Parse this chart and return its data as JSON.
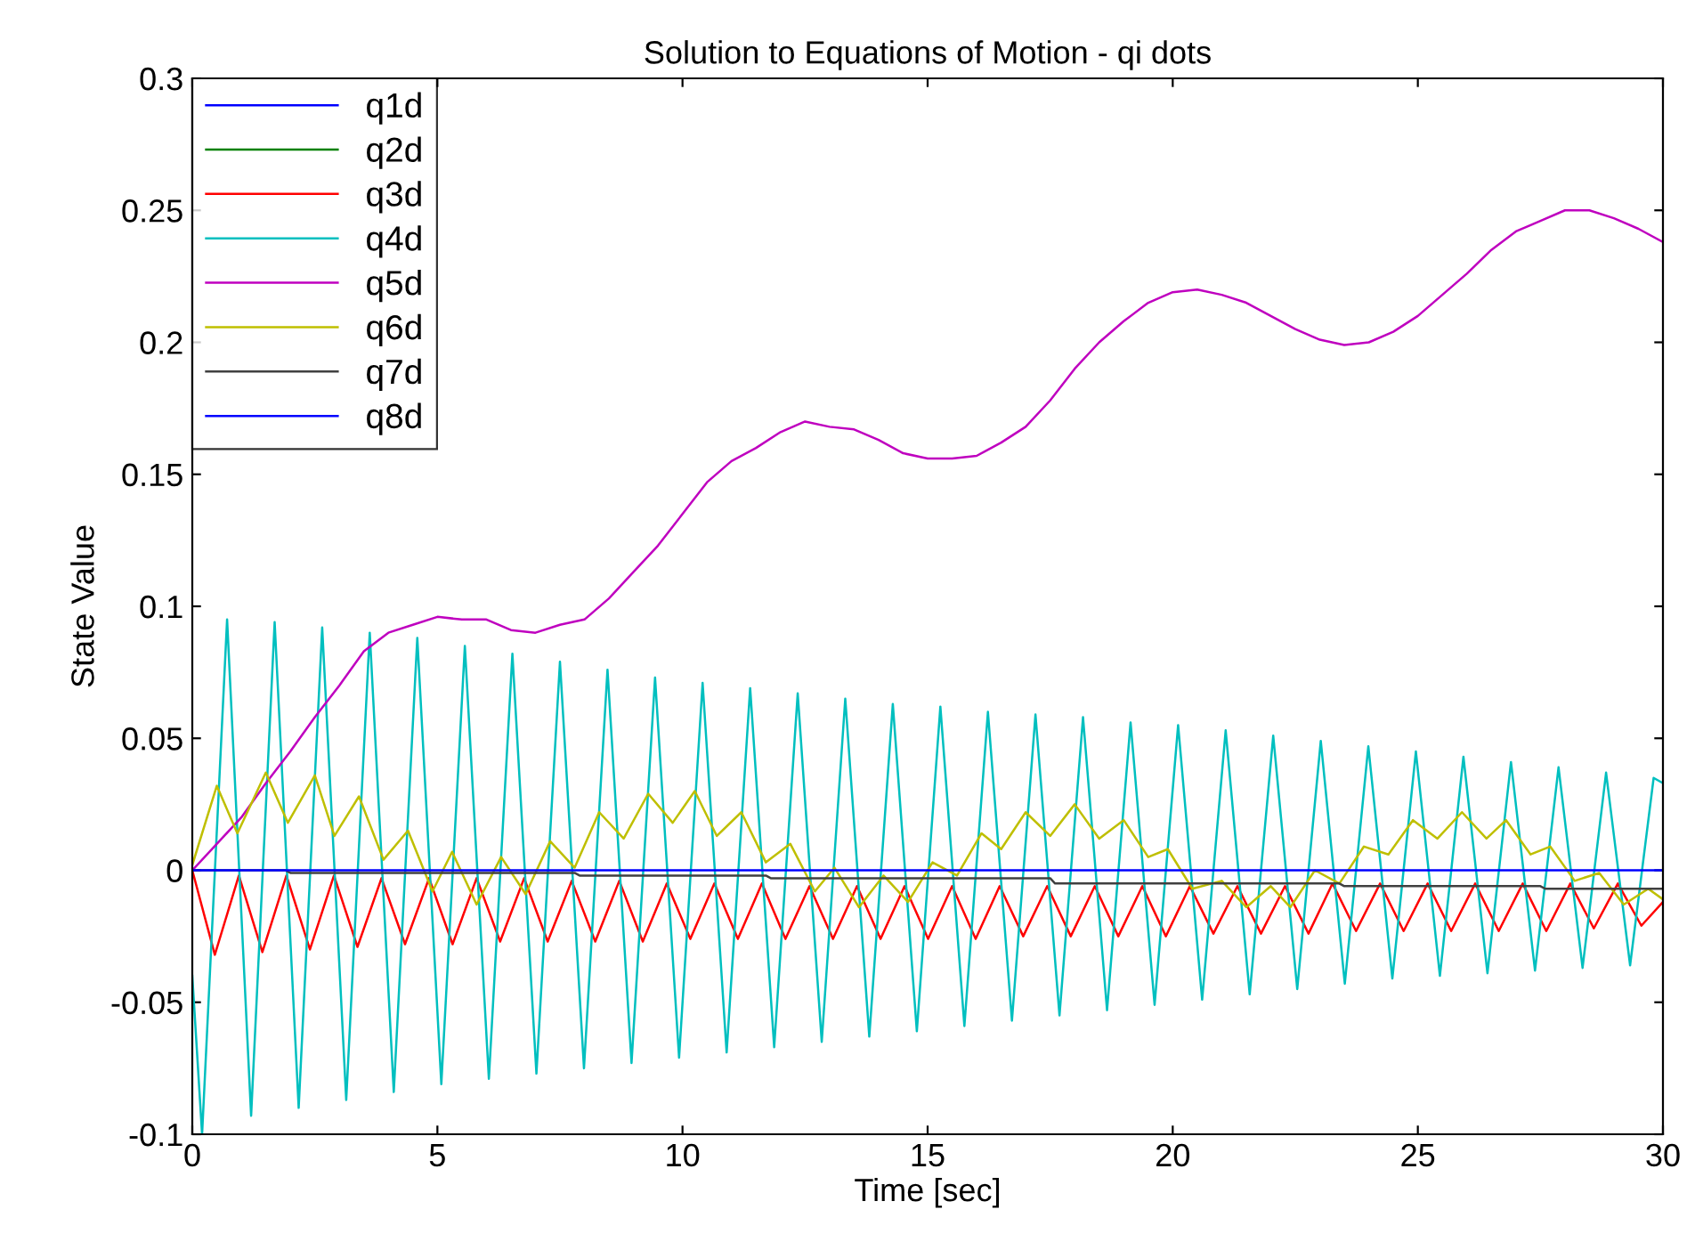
{
  "chart_data": {
    "type": "line",
    "title": "Solution to Equations of Motion - qi dots",
    "xlabel": "Time [sec]",
    "ylabel": "State Value",
    "xlim": [
      0,
      30
    ],
    "ylim": [
      -0.1,
      0.3
    ],
    "xticks": [
      0,
      5,
      10,
      15,
      20,
      25,
      30
    ],
    "yticks": [
      -0.1,
      -0.05,
      0,
      0.05,
      0.1,
      0.15,
      0.2,
      0.25,
      0.3
    ],
    "grid": false,
    "legend": "top left",
    "line_style": "solid",
    "marker": "none",
    "series": [
      {
        "name": "q1d",
        "color": "#0000ff"
      },
      {
        "name": "q2d",
        "color": "#008000"
      },
      {
        "name": "q3d",
        "color": "#ff0000",
        "x": [
          0,
          0.46,
          0.95,
          1.43,
          1.92,
          2.4,
          2.89,
          3.37,
          3.86,
          4.34,
          4.83,
          5.31,
          5.8,
          6.28,
          6.77,
          7.25,
          7.74,
          8.22,
          8.71,
          9.19,
          9.68,
          10.16,
          10.65,
          11.13,
          11.62,
          12.1,
          12.59,
          13.07,
          13.56,
          14.04,
          14.53,
          15.01,
          15.5,
          15.98,
          16.47,
          16.95,
          17.44,
          17.92,
          18.41,
          18.89,
          19.38,
          19.86,
          20.35,
          20.83,
          21.32,
          21.8,
          22.29,
          22.77,
          23.26,
          23.74,
          24.23,
          24.71,
          25.2,
          25.68,
          26.17,
          26.65,
          27.14,
          27.62,
          28.11,
          28.59,
          29.08,
          29.56,
          30
        ],
        "values": [
          0,
          -0.032,
          -0.002,
          -0.031,
          -0.002,
          -0.03,
          -0.002,
          -0.029,
          -0.003,
          -0.028,
          -0.003,
          -0.028,
          -0.003,
          -0.027,
          -0.003,
          -0.027,
          -0.004,
          -0.027,
          -0.004,
          -0.027,
          -0.005,
          -0.026,
          -0.005,
          -0.026,
          -0.005,
          -0.026,
          -0.006,
          -0.026,
          -0.006,
          -0.026,
          -0.006,
          -0.026,
          -0.006,
          -0.026,
          -0.006,
          -0.025,
          -0.006,
          -0.025,
          -0.006,
          -0.025,
          -0.006,
          -0.025,
          -0.006,
          -0.024,
          -0.006,
          -0.024,
          -0.006,
          -0.024,
          -0.005,
          -0.023,
          -0.005,
          -0.023,
          -0.005,
          -0.023,
          -0.005,
          -0.023,
          -0.005,
          -0.023,
          -0.005,
          -0.022,
          -0.005,
          -0.021,
          -0.012
        ]
      },
      {
        "name": "q4d",
        "color": "#00bfbf",
        "x": [
          0,
          0.2,
          0.71,
          1.2,
          1.68,
          2.17,
          2.65,
          3.14,
          3.62,
          4.11,
          4.59,
          5.08,
          5.56,
          6.05,
          6.53,
          7.02,
          7.5,
          7.99,
          8.47,
          8.96,
          9.44,
          9.93,
          10.41,
          10.9,
          11.38,
          11.87,
          12.35,
          12.84,
          13.32,
          13.81,
          14.29,
          14.78,
          15.26,
          15.75,
          16.23,
          16.72,
          17.2,
          17.69,
          18.17,
          18.66,
          19.14,
          19.63,
          20.11,
          20.6,
          21.08,
          21.57,
          22.05,
          22.54,
          23.02,
          23.51,
          23.99,
          24.48,
          24.96,
          25.45,
          25.93,
          26.42,
          26.9,
          27.39,
          27.87,
          28.36,
          28.84,
          29.33,
          29.81,
          30
        ],
        "values": [
          -0.04,
          -0.1,
          0.095,
          -0.093,
          0.094,
          -0.09,
          0.092,
          -0.087,
          0.09,
          -0.084,
          0.088,
          -0.081,
          0.085,
          -0.079,
          0.082,
          -0.077,
          0.079,
          -0.075,
          0.076,
          -0.073,
          0.073,
          -0.071,
          0.071,
          -0.069,
          0.069,
          -0.067,
          0.067,
          -0.065,
          0.065,
          -0.063,
          0.063,
          -0.061,
          0.062,
          -0.059,
          0.06,
          -0.057,
          0.059,
          -0.055,
          0.058,
          -0.053,
          0.056,
          -0.051,
          0.055,
          -0.049,
          0.053,
          -0.047,
          0.051,
          -0.045,
          0.049,
          -0.043,
          0.047,
          -0.041,
          0.045,
          -0.04,
          0.043,
          -0.039,
          0.041,
          -0.038,
          0.039,
          -0.037,
          0.037,
          -0.036,
          0.035,
          0.033
        ]
      },
      {
        "name": "q5d",
        "color": "#bf00bf",
        "x": [
          0,
          0.5,
          1,
          1.5,
          2,
          2.5,
          3,
          3.5,
          4,
          4.5,
          5,
          5.5,
          6,
          6.5,
          7,
          7.5,
          8,
          8.5,
          9,
          9.5,
          10,
          10.5,
          11,
          11.5,
          12,
          12.5,
          13,
          13.5,
          14,
          14.5,
          15,
          15.5,
          16,
          16.5,
          17,
          17.5,
          18,
          18.5,
          19,
          19.5,
          20,
          20.5,
          21,
          21.5,
          22,
          22.5,
          23,
          23.5,
          24,
          24.5,
          25,
          25.5,
          26,
          26.5,
          27,
          27.5,
          28,
          28.5,
          29,
          29.5,
          30
        ],
        "values": [
          0,
          0.01,
          0.02,
          0.033,
          0.045,
          0.058,
          0.07,
          0.083,
          0.09,
          0.093,
          0.096,
          0.095,
          0.095,
          0.091,
          0.09,
          0.093,
          0.095,
          0.103,
          0.113,
          0.123,
          0.135,
          0.147,
          0.155,
          0.16,
          0.166,
          0.17,
          0.168,
          0.167,
          0.163,
          0.158,
          0.156,
          0.156,
          0.157,
          0.162,
          0.168,
          0.178,
          0.19,
          0.2,
          0.208,
          0.215,
          0.219,
          0.22,
          0.218,
          0.215,
          0.21,
          0.205,
          0.201,
          0.199,
          0.2,
          0.204,
          0.21,
          0.218,
          0.226,
          0.235,
          0.242,
          0.246,
          0.25,
          0.25,
          0.247,
          0.243,
          0.238
        ]
      },
      {
        "name": "q6d",
        "color": "#bfbf00",
        "x": [
          0,
          0.5,
          0.92,
          1.5,
          1.95,
          2.5,
          2.9,
          3.4,
          3.9,
          4.4,
          4.9,
          5.3,
          5.8,
          6.3,
          6.8,
          7.3,
          7.8,
          8.3,
          8.8,
          9.3,
          9.8,
          10.25,
          10.7,
          11.2,
          11.7,
          12.2,
          12.7,
          13.1,
          13.6,
          14.1,
          14.6,
          15.1,
          15.6,
          16.1,
          16.5,
          17.0,
          17.5,
          18.0,
          18.5,
          19.0,
          19.5,
          19.9,
          20.4,
          21.0,
          21.5,
          22.0,
          22.4,
          22.9,
          23.4,
          23.9,
          24.4,
          24.9,
          25.4,
          25.9,
          26.4,
          26.8,
          27.3,
          27.7,
          28.2,
          28.7,
          29.2,
          29.7,
          30
        ],
        "values": [
          0.002,
          0.032,
          0.014,
          0.037,
          0.018,
          0.036,
          0.013,
          0.028,
          0.004,
          0.015,
          -0.008,
          0.007,
          -0.013,
          0.005,
          -0.009,
          0.011,
          0.001,
          0.022,
          0.012,
          0.029,
          0.018,
          0.03,
          0.013,
          0.022,
          0.003,
          0.01,
          -0.008,
          0.001,
          -0.014,
          -0.002,
          -0.012,
          0.003,
          -0.002,
          0.014,
          0.008,
          0.022,
          0.013,
          0.025,
          0.012,
          0.019,
          0.005,
          0.008,
          -0.007,
          -0.004,
          -0.014,
          -0.006,
          -0.014,
          0,
          -0.005,
          0.009,
          0.006,
          0.019,
          0.012,
          0.022,
          0.012,
          0.019,
          0.006,
          0.009,
          -0.004,
          -0.001,
          -0.013,
          -0.007,
          -0.011
        ]
      },
      {
        "name": "q7d",
        "color": "#404040",
        "x": [
          0,
          1.9,
          2.0,
          7.8,
          7.9,
          11.7,
          11.8,
          17.5,
          17.6,
          23.4,
          23.5,
          27.5,
          27.6,
          30
        ],
        "values": [
          0,
          0,
          -0.001,
          -0.001,
          -0.002,
          -0.002,
          -0.003,
          -0.003,
          -0.005,
          -0.005,
          -0.006,
          -0.006,
          -0.007,
          -0.007
        ]
      },
      {
        "name": "q8d",
        "color": "#0000ff",
        "x": [
          0,
          30
        ],
        "values": [
          0,
          0
        ]
      }
    ]
  }
}
